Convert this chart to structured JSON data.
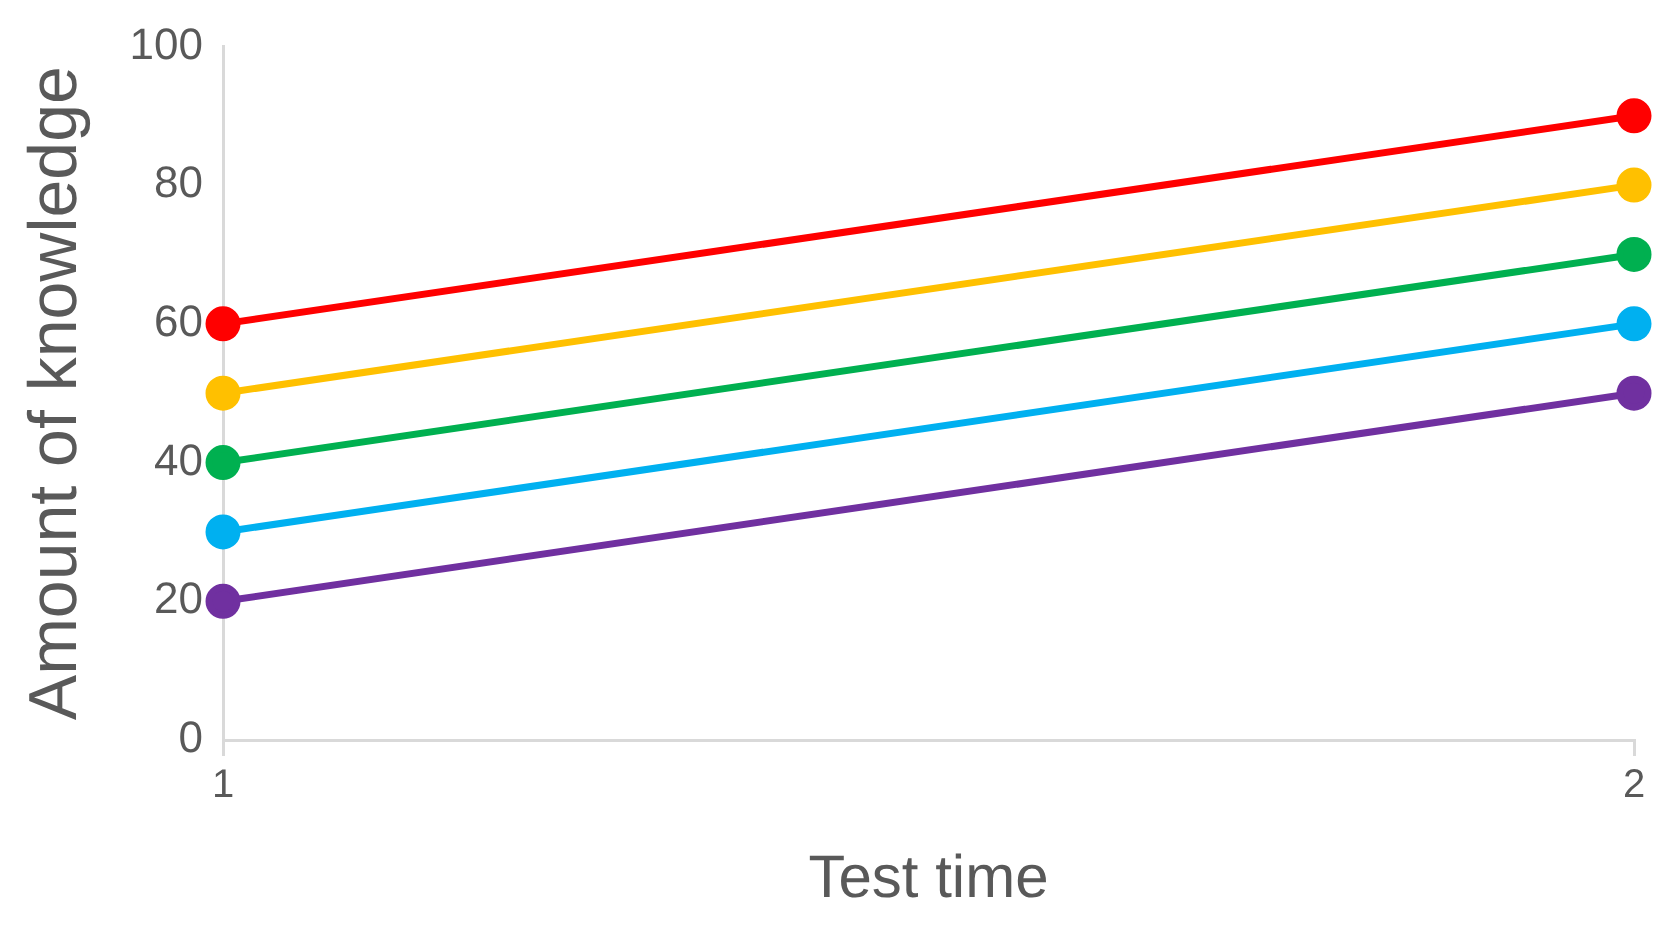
{
  "chart_data": {
    "type": "line",
    "xlabel": "Test time",
    "ylabel": "Amount of knowledge",
    "x": [
      1,
      2
    ],
    "xlim": [
      1,
      2
    ],
    "xticks": [
      1,
      2
    ],
    "ylim": [
      0,
      100
    ],
    "yticks": [
      0,
      20,
      40,
      60,
      80,
      100
    ],
    "grid": false,
    "legend": false,
    "marker": "circle",
    "line_style": "solid",
    "series": [
      {
        "color": "#ff0000",
        "values": [
          60,
          90
        ]
      },
      {
        "color": "#ffc000",
        "values": [
          50,
          80
        ]
      },
      {
        "color": "#00b050",
        "values": [
          40,
          70
        ]
      },
      {
        "color": "#00b0f0",
        "values": [
          30,
          60
        ]
      },
      {
        "color": "#7030a0",
        "values": [
          20,
          50
        ]
      }
    ]
  }
}
